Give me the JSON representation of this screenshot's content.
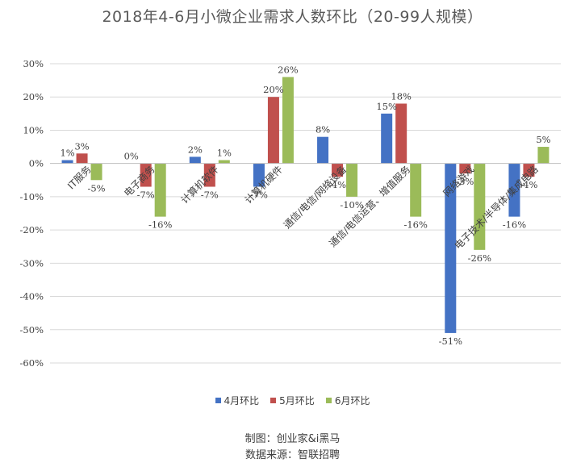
{
  "chart_data": {
    "type": "bar",
    "title": "2018年4-6月小微企业需求人数环比（20-99人规模）",
    "categories": [
      "IT服务",
      "电子商务",
      "计算机软件",
      "计算机硬件",
      "通信/电信/网络设备",
      "通信/电信运营、增值服务",
      "网络游戏",
      "电子技术/半导体/集成电路"
    ],
    "series": [
      {
        "name": "4月环比",
        "color": "#4472C4",
        "values": [
          1,
          0,
          2,
          -7,
          8,
          15,
          -51,
          -16
        ]
      },
      {
        "name": "5月环比",
        "color": "#C0504D",
        "values": [
          3,
          -7,
          -7,
          20,
          -4,
          18,
          -3,
          -4
        ]
      },
      {
        "name": "6月环比",
        "color": "#9BBB59",
        "values": [
          -5,
          -16,
          1,
          26,
          -10,
          -16,
          -26,
          5
        ]
      }
    ],
    "ylim": [
      -60,
      30
    ],
    "yticks": [
      30,
      20,
      10,
      0,
      -10,
      -20,
      -30,
      -40,
      -50,
      -60
    ],
    "ytick_labels": [
      "30%",
      "20%",
      "10%",
      "0%",
      "-10%",
      "-20%",
      "-30%",
      "-40%",
      "-50%",
      "-60%"
    ],
    "value_suffix": "%",
    "xlabel": "",
    "ylabel": "",
    "grid": true,
    "legend_position": "bottom"
  },
  "footer": {
    "line1": "制图：创业家&i黑马",
    "line2": "数据来源：智联招聘"
  }
}
